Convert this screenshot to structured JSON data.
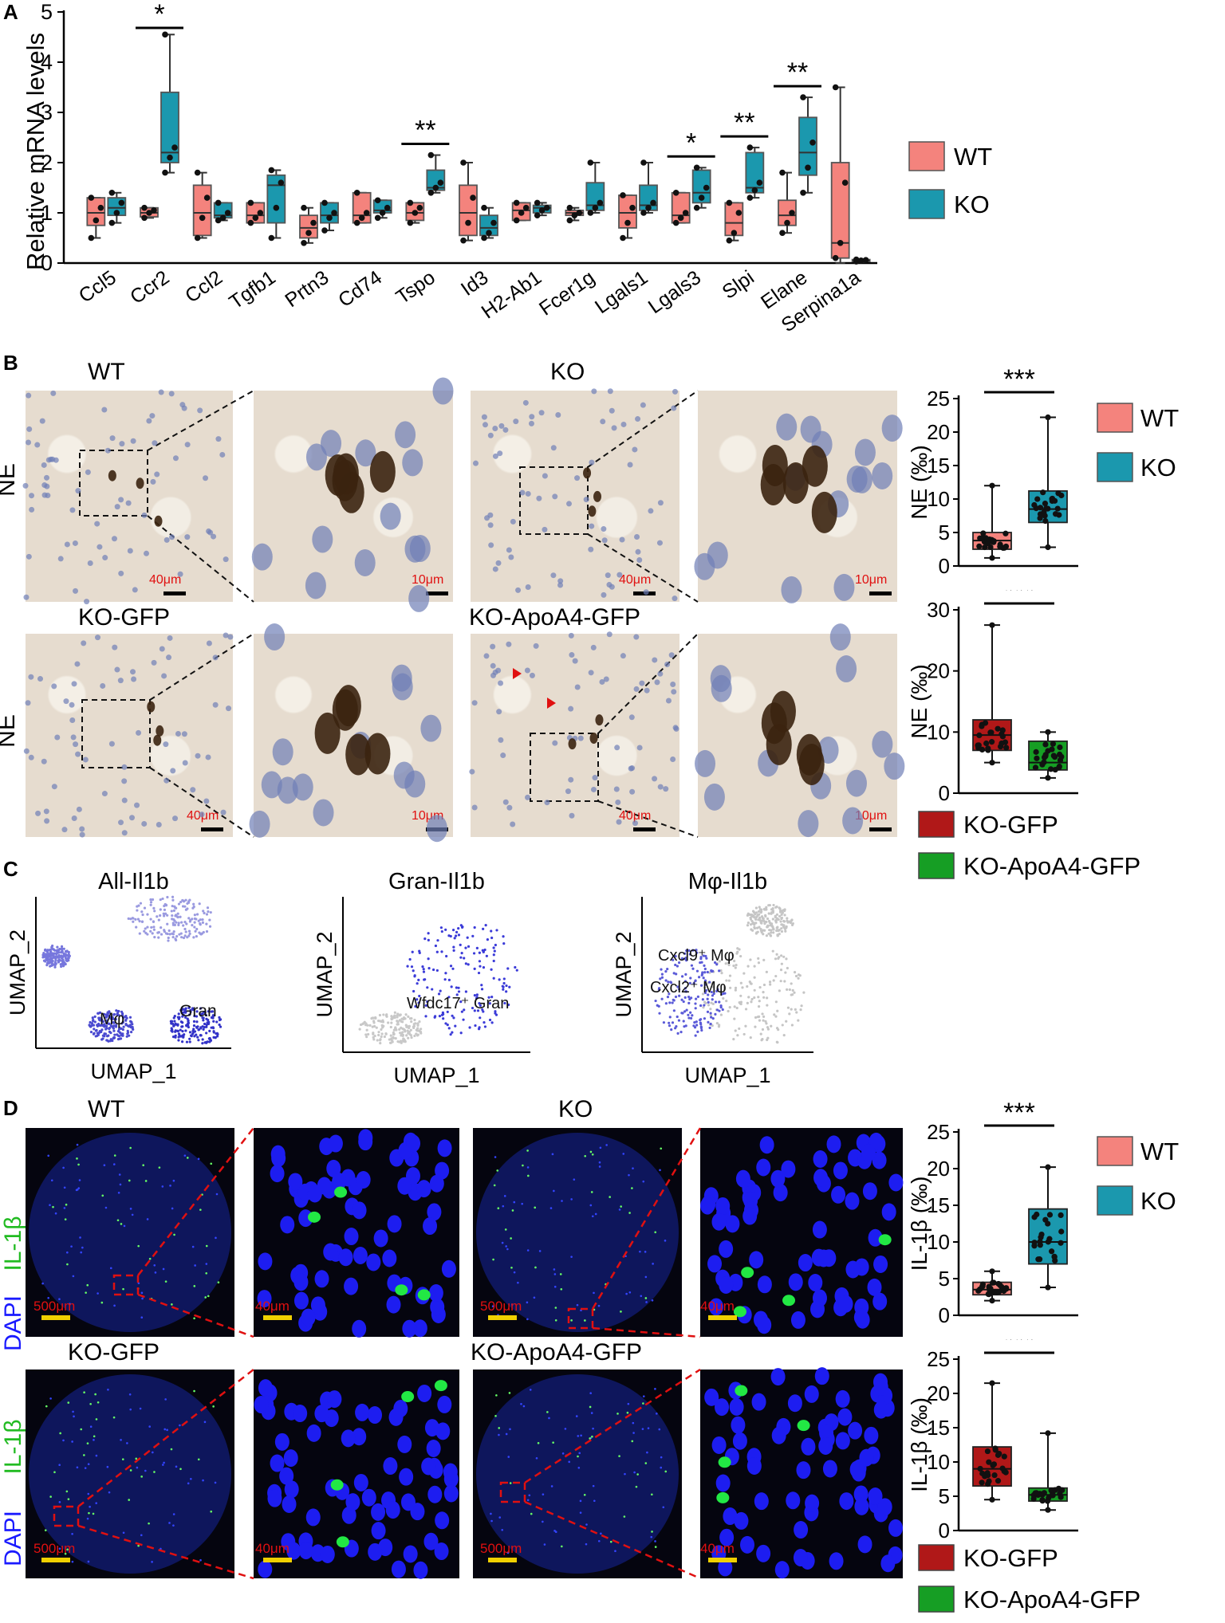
{
  "colors": {
    "wt": "#f4837d",
    "ko": "#1b98ae",
    "ko_gfp": "#b01818",
    "ko_apoa4_gfp": "#169e24",
    "scale_ihc": "#e01010",
    "scale_fluor": "#f0d000",
    "dapi": "#1a1aff",
    "il1b": "#22dd22",
    "zoom_line_fluor": "#e01010"
  },
  "panel_labels": {
    "A": "A",
    "B": "B",
    "C": "C",
    "D": "D"
  },
  "panelA": {
    "legend": {
      "wt": "WT",
      "ko": "KO"
    },
    "chart_data": {
      "type": "box",
      "title": "",
      "ylabel": "Relative mRNA levels",
      "ylim": [
        0,
        5
      ],
      "yticks": [
        0,
        1,
        2,
        3,
        4,
        5
      ],
      "categories": [
        "Ccl5",
        "Ccr2",
        "Ccl2",
        "Tgfb1",
        "Prtn3",
        "Cd74",
        "Tspo",
        "Id3",
        "H2-Ab1",
        "Fcer1g",
        "Lgals1",
        "Lgals3",
        "Slpi",
        "Elane",
        "Serpina1a"
      ],
      "series": [
        {
          "name": "WT",
          "boxes": [
            {
              "min": 0.5,
              "q1": 0.75,
              "med": 1.0,
              "q3": 1.3,
              "max": 1.3,
              "pts": [
                0.5,
                0.85,
                1.1,
                1.3
              ]
            },
            {
              "min": 0.9,
              "q1": 0.92,
              "med": 1.0,
              "q3": 1.1,
              "max": 1.1,
              "pts": [
                0.9,
                1.0,
                1.05,
                1.1
              ]
            },
            {
              "min": 0.5,
              "q1": 0.55,
              "med": 1.0,
              "q3": 1.55,
              "max": 1.8,
              "pts": [
                0.5,
                0.9,
                1.3,
                1.8
              ]
            },
            {
              "min": 0.8,
              "q1": 0.8,
              "med": 0.95,
              "q3": 1.2,
              "max": 1.2,
              "pts": [
                0.8,
                0.9,
                1.0,
                1.2
              ]
            },
            {
              "min": 0.4,
              "q1": 0.5,
              "med": 0.7,
              "q3": 0.95,
              "max": 1.1,
              "pts": [
                0.4,
                0.6,
                0.8,
                1.1
              ]
            },
            {
              "min": 0.8,
              "q1": 0.8,
              "med": 0.95,
              "q3": 1.4,
              "max": 1.4,
              "pts": [
                0.8,
                0.9,
                1.0,
                1.4
              ]
            },
            {
              "min": 0.8,
              "q1": 0.85,
              "med": 1.0,
              "q3": 1.2,
              "max": 1.2,
              "pts": [
                0.8,
                1.0,
                1.1,
                1.2
              ]
            },
            {
              "min": 0.45,
              "q1": 0.55,
              "med": 1.0,
              "q3": 1.55,
              "max": 2.0,
              "pts": [
                0.45,
                0.8,
                1.3,
                2.0
              ]
            },
            {
              "min": 0.85,
              "q1": 0.85,
              "med": 1.05,
              "q3": 1.2,
              "max": 1.2,
              "pts": [
                0.85,
                1.0,
                1.1,
                1.2
              ]
            },
            {
              "min": 0.85,
              "q1": 0.95,
              "med": 1.0,
              "q3": 1.05,
              "max": 1.1,
              "pts": [
                0.85,
                0.95,
                1.0,
                1.1
              ]
            },
            {
              "min": 0.5,
              "q1": 0.7,
              "med": 1.0,
              "q3": 1.35,
              "max": 1.35,
              "pts": [
                0.5,
                0.8,
                1.1,
                1.35
              ]
            },
            {
              "min": 0.8,
              "q1": 0.8,
              "med": 0.95,
              "q3": 1.4,
              "max": 1.4,
              "pts": [
                0.8,
                0.9,
                1.0,
                1.4
              ]
            },
            {
              "min": 0.45,
              "q1": 0.55,
              "med": 0.8,
              "q3": 1.2,
              "max": 1.2,
              "pts": [
                0.45,
                0.6,
                1.0,
                1.2
              ]
            },
            {
              "min": 0.6,
              "q1": 0.75,
              "med": 0.95,
              "q3": 1.25,
              "max": 1.8,
              "pts": [
                0.6,
                0.8,
                1.0,
                1.8
              ]
            },
            {
              "min": 0.0,
              "q1": 0.1,
              "med": 0.4,
              "q3": 2.0,
              "max": 3.5,
              "pts": [
                0.1,
                0.4,
                1.6,
                3.5
              ]
            }
          ]
        },
        {
          "name": "KO",
          "boxes": [
            {
              "min": 0.8,
              "q1": 0.95,
              "med": 1.1,
              "q3": 1.3,
              "max": 1.4,
              "pts": [
                0.8,
                1.0,
                1.2,
                1.4
              ]
            },
            {
              "min": 1.8,
              "q1": 2.0,
              "med": 2.2,
              "q3": 3.4,
              "max": 4.55,
              "pts": [
                1.8,
                2.1,
                2.3,
                4.55
              ]
            },
            {
              "min": 0.85,
              "q1": 0.9,
              "med": 0.95,
              "q3": 1.2,
              "max": 1.2,
              "pts": [
                0.85,
                0.9,
                1.0,
                1.2
              ]
            },
            {
              "min": 0.5,
              "q1": 0.8,
              "med": 1.55,
              "q3": 1.75,
              "max": 1.85,
              "pts": [
                0.5,
                1.1,
                1.6,
                1.85
              ]
            },
            {
              "min": 0.65,
              "q1": 0.8,
              "med": 0.95,
              "q3": 1.2,
              "max": 1.2,
              "pts": [
                0.65,
                0.9,
                1.0,
                1.2
              ]
            },
            {
              "min": 0.9,
              "q1": 1.0,
              "med": 1.05,
              "q3": 1.25,
              "max": 1.25,
              "pts": [
                0.9,
                1.0,
                1.1,
                1.25
              ]
            },
            {
              "min": 1.4,
              "q1": 1.45,
              "med": 1.5,
              "q3": 1.85,
              "max": 2.15,
              "pts": [
                1.4,
                1.5,
                1.6,
                2.15
              ]
            },
            {
              "min": 0.5,
              "q1": 0.55,
              "med": 0.7,
              "q3": 0.95,
              "max": 1.1,
              "pts": [
                0.5,
                0.6,
                0.8,
                1.1
              ]
            },
            {
              "min": 0.95,
              "q1": 1.0,
              "med": 1.1,
              "q3": 1.15,
              "max": 1.2,
              "pts": [
                0.95,
                1.05,
                1.1,
                1.2
              ]
            },
            {
              "min": 1.0,
              "q1": 1.05,
              "med": 1.15,
              "q3": 1.6,
              "max": 2.0,
              "pts": [
                1.0,
                1.1,
                1.2,
                2.0
              ]
            },
            {
              "min": 1.0,
              "q1": 1.05,
              "med": 1.15,
              "q3": 1.55,
              "max": 2.0,
              "pts": [
                1.0,
                1.1,
                1.2,
                2.0
              ]
            },
            {
              "min": 1.1,
              "q1": 1.2,
              "med": 1.4,
              "q3": 1.85,
              "max": 1.9,
              "pts": [
                1.1,
                1.3,
                1.5,
                1.9
              ]
            },
            {
              "min": 1.3,
              "q1": 1.4,
              "med": 1.5,
              "q3": 2.2,
              "max": 2.3,
              "pts": [
                1.3,
                1.45,
                1.6,
                2.3
              ]
            },
            {
              "min": 1.4,
              "q1": 1.75,
              "med": 2.2,
              "q3": 2.9,
              "max": 3.3,
              "pts": [
                1.4,
                1.9,
                2.4,
                3.3
              ]
            },
            {
              "min": 0.02,
              "q1": 0.03,
              "med": 0.05,
              "q3": 0.07,
              "max": 0.08,
              "pts": [
                0.03,
                0.05,
                0.06,
                0.07
              ]
            }
          ]
        }
      ],
      "significance": [
        {
          "category": "Ccr2",
          "label": "*"
        },
        {
          "category": "Tspo",
          "label": "**"
        },
        {
          "category": "Lgals3",
          "label": "*"
        },
        {
          "category": "Slpi",
          "label": "**"
        },
        {
          "category": "Elane",
          "label": "**"
        }
      ]
    }
  },
  "panelB": {
    "row1": {
      "left_label": "WT",
      "right_label": "KO",
      "row_label": "NE"
    },
    "row2": {
      "left_label": "KO-GFP",
      "right_label": "KO-ApoA4-GFP",
      "row_label": "NE"
    },
    "scale_low": "40μm",
    "scale_high": "10μm",
    "legend_top": {
      "wt": "WT",
      "ko": "KO"
    },
    "legend_bottom": {
      "ko_gfp": "KO-GFP",
      "ko_apoa4_gfp": "KO-ApoA4-GFP"
    },
    "chart_top": {
      "type": "box",
      "ylabel": "NE (‰)",
      "ylim": [
        0,
        25
      ],
      "yticks": [
        0,
        5,
        10,
        15,
        20,
        25
      ],
      "categories": [
        "WT",
        "KO"
      ],
      "sig": "***",
      "boxes": [
        {
          "name": "WT",
          "min": 1.2,
          "q1": 2.5,
          "med": 3.8,
          "q3": 5.0,
          "max": 12.0
        },
        {
          "name": "KO",
          "min": 2.8,
          "q1": 6.5,
          "med": 8.5,
          "q3": 11.2,
          "max": 22.2
        }
      ]
    },
    "chart_bottom": {
      "type": "box",
      "ylabel": "NE (‰)",
      "ylim": [
        0,
        30
      ],
      "yticks": [
        0,
        10,
        20,
        30
      ],
      "categories": [
        "KO-GFP",
        "KO-ApoA4-GFP"
      ],
      "sig": "***",
      "boxes": [
        {
          "name": "KO-GFP",
          "min": 5.0,
          "q1": 7.0,
          "med": 9.5,
          "q3": 12.0,
          "max": 27.5
        },
        {
          "name": "KO-ApoA4-GFP",
          "min": 2.5,
          "q1": 3.8,
          "med": 5.0,
          "q3": 8.5,
          "max": 10.0
        }
      ]
    }
  },
  "panelC": {
    "plots": [
      {
        "title": "All-Il1b",
        "xlabel": "UMAP_1",
        "ylabel": "UMAP_2",
        "labels": [
          "Mφ",
          "Gran"
        ]
      },
      {
        "title": "Gran-Il1b",
        "xlabel": "UMAP_1",
        "ylabel": "UMAP_2",
        "labels": [
          "Wfdc17⁺ Gran"
        ]
      },
      {
        "title": "Mφ-Il1b",
        "xlabel": "UMAP_1",
        "ylabel": "UMAP_2",
        "labels": [
          "Cxcl9⁺ Mφ",
          "Cxcl2⁺ Mφ"
        ]
      }
    ]
  },
  "panelD": {
    "row1": {
      "left_label": "WT",
      "right_label": "KO"
    },
    "row2": {
      "left_label": "KO-GFP",
      "right_label": "KO-ApoA4-GFP"
    },
    "stain_label_dapi": "DAPI",
    "stain_label_il1b": "IL-1β",
    "scale_low": "500μm",
    "scale_high": "40μm",
    "legend_top": {
      "wt": "WT",
      "ko": "KO"
    },
    "legend_bottom": {
      "ko_gfp": "KO-GFP",
      "ko_apoa4_gfp": "KO-ApoA4-GFP"
    },
    "chart_top": {
      "type": "box",
      "ylabel": "IL-1β (‰)",
      "ylim": [
        0,
        25
      ],
      "yticks": [
        0,
        5,
        10,
        15,
        20,
        25
      ],
      "categories": [
        "WT",
        "KO"
      ],
      "sig": "***",
      "boxes": [
        {
          "name": "WT",
          "min": 2.0,
          "q1": 2.8,
          "med": 3.5,
          "q3": 4.5,
          "max": 6.0
        },
        {
          "name": "KO",
          "min": 3.8,
          "q1": 7.0,
          "med": 10.0,
          "q3": 14.5,
          "max": 20.2
        }
      ]
    },
    "chart_bottom": {
      "type": "box",
      "ylabel": "IL-1β (‰)",
      "ylim": [
        0,
        25
      ],
      "yticks": [
        0,
        5,
        10,
        15,
        20,
        25
      ],
      "categories": [
        "KO-GFP",
        "KO-ApoA4-GFP"
      ],
      "sig": "***",
      "boxes": [
        {
          "name": "KO-GFP",
          "min": 4.5,
          "q1": 6.5,
          "med": 9.0,
          "q3": 12.2,
          "max": 21.5
        },
        {
          "name": "KO-ApoA4-GFP",
          "min": 3.0,
          "q1": 4.3,
          "med": 5.2,
          "q3": 6.2,
          "max": 14.2
        }
      ]
    }
  }
}
